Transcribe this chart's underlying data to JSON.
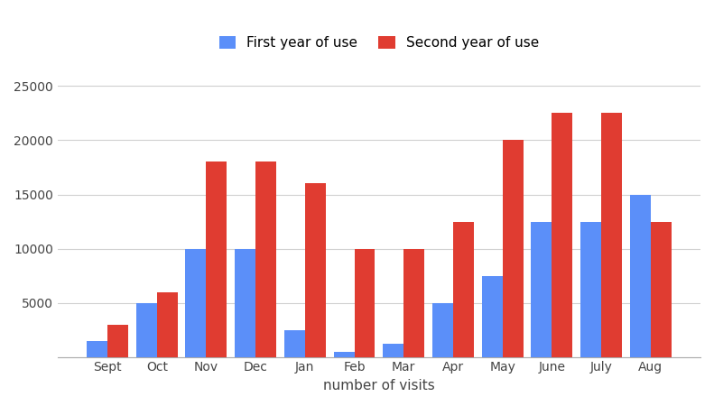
{
  "months": [
    "Sept",
    "Oct",
    "Nov",
    "Dec",
    "Jan",
    "Feb",
    "Mar",
    "Apr",
    "May",
    "June",
    "July",
    "Aug"
  ],
  "first_year": [
    1500,
    5000,
    10000,
    10000,
    2500,
    500,
    1200,
    5000,
    7500,
    12500,
    12500,
    15000
  ],
  "second_year": [
    3000,
    6000,
    18000,
    18000,
    16000,
    10000,
    10000,
    12500,
    20000,
    22500,
    22500,
    12500
  ],
  "first_color": "#5b8ff9",
  "second_color": "#e03c31",
  "legend_first": "First year of use",
  "legend_second": "Second year of use",
  "xlabel": "number of visits",
  "ylim": [
    0,
    27000
  ],
  "yticks": [
    0,
    5000,
    10000,
    15000,
    20000,
    25000
  ],
  "background_color": "#ffffff",
  "bar_width": 0.42,
  "grid_color": "#d0d0d0",
  "label_fontsize": 11,
  "tick_fontsize": 10,
  "legend_fontsize": 11
}
